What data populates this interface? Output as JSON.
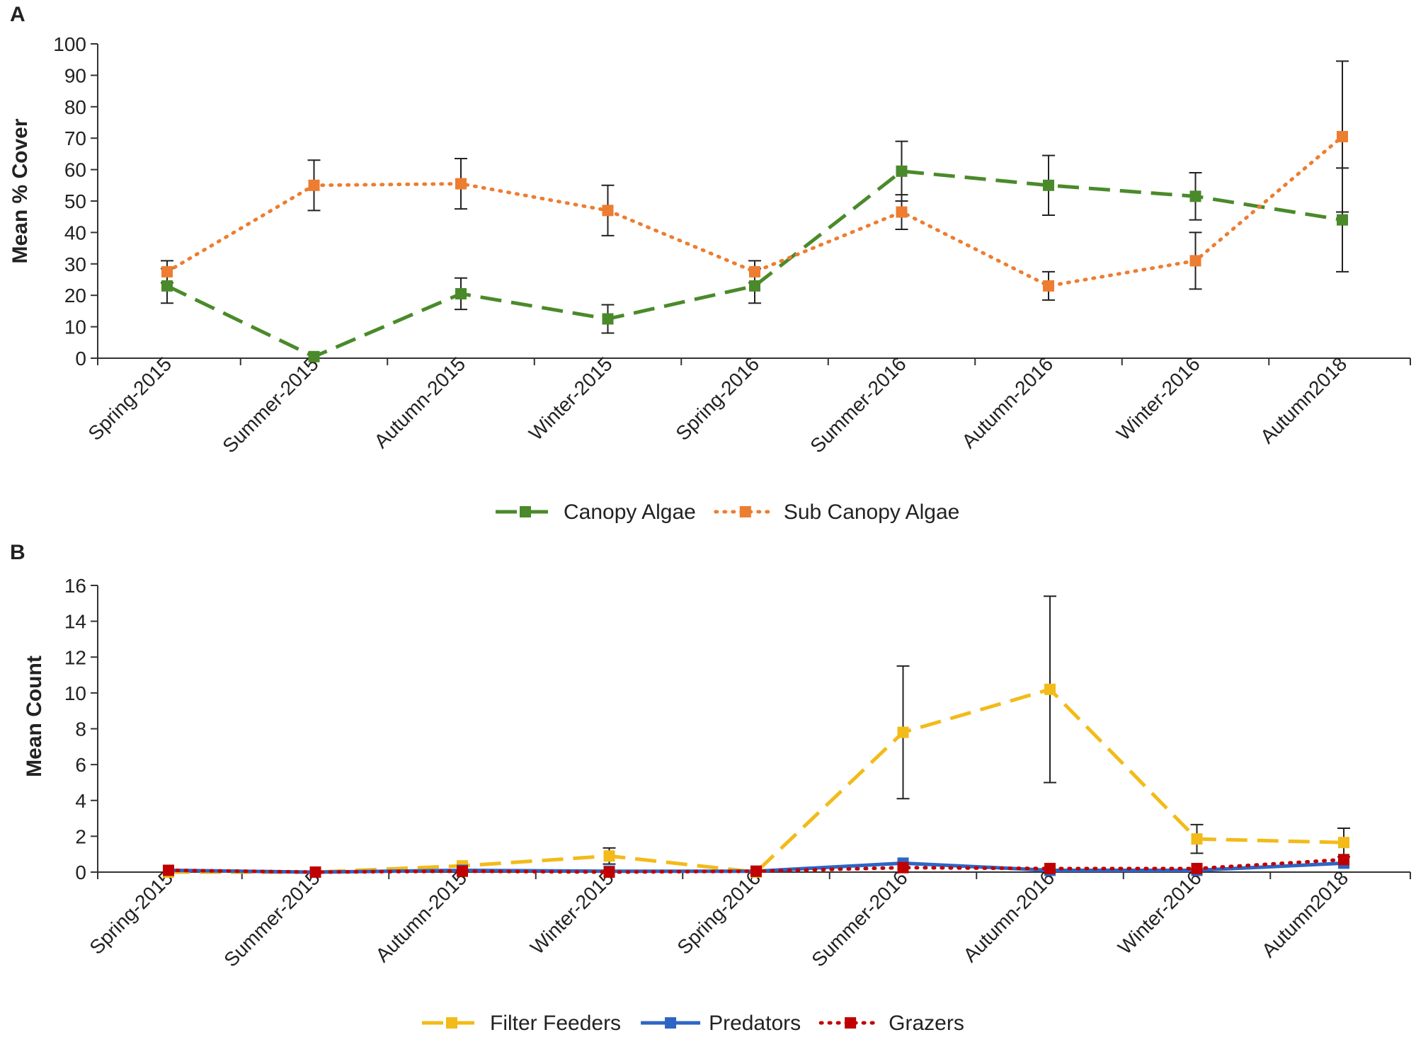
{
  "chart_data": [
    {
      "panel": "A",
      "type": "line",
      "title": "",
      "xlabel": "",
      "ylabel": "Mean % Cover",
      "ylim": [
        0,
        100
      ],
      "yticks": [
        0,
        10,
        20,
        30,
        40,
        50,
        60,
        70,
        80,
        90,
        100
      ],
      "grid": false,
      "legend": "bottom-center",
      "categories": [
        "Spring-2015",
        "Summer-2015",
        "Autumn-2015",
        "Winter-2015",
        "Spring-2016",
        "Summer-2016",
        "Autumn-2016",
        "Winter-2016",
        "Autumn2018"
      ],
      "series": [
        {
          "name": "Canopy Algae",
          "color": "#4a8a2a",
          "dash": "dashed",
          "values": [
            23,
            0.5,
            20.5,
            12.5,
            23,
            59.5,
            55,
            51.5,
            44
          ],
          "errors": [
            5.5,
            0,
            5,
            4.5,
            5.5,
            9.5,
            9.5,
            7.5,
            16.5
          ]
        },
        {
          "name": "Sub Canopy Algae",
          "color": "#ed7d31",
          "dash": "dotted",
          "values": [
            27.5,
            55,
            55.5,
            47,
            27.5,
            46.5,
            23,
            31,
            70.5
          ],
          "errors": [
            3.5,
            8,
            8,
            8,
            3.5,
            5.5,
            4.5,
            9,
            24
          ]
        }
      ]
    },
    {
      "panel": "B",
      "type": "line",
      "title": "",
      "xlabel": "",
      "ylabel": "Mean Count",
      "ylim": [
        0,
        16
      ],
      "yticks": [
        0,
        2,
        4,
        6,
        8,
        10,
        12,
        14,
        16
      ],
      "grid": false,
      "legend": "bottom-center",
      "categories": [
        "Spring-2015",
        "Summer-2015",
        "Autumn-2015",
        "Winter-2015",
        "Spring-2016",
        "Summer-2016",
        "Autumn-2016",
        "Winter-2016",
        "Autumn2018"
      ],
      "series": [
        {
          "name": "Filter Feeders",
          "color": "#f2bb19",
          "dash": "dashed",
          "values": [
            0,
            0,
            0.35,
            0.9,
            0,
            7.8,
            10.2,
            1.85,
            1.65
          ],
          "errors": [
            0,
            0,
            0,
            0.45,
            0,
            3.7,
            5.2,
            0.8,
            0.8
          ]
        },
        {
          "name": "Predators",
          "color": "#2e65c4",
          "dash": "solid",
          "values": [
            0.1,
            0,
            0.1,
            0.05,
            0.05,
            0.5,
            0.1,
            0.1,
            0.5
          ],
          "errors": [
            0,
            0,
            0,
            0,
            0,
            0,
            0,
            0,
            0
          ]
        },
        {
          "name": "Grazers",
          "color": "#c00000",
          "dash": "dotted",
          "values": [
            0.1,
            0,
            0.05,
            0,
            0.05,
            0.25,
            0.2,
            0.2,
            0.7
          ],
          "errors": [
            0,
            0,
            0,
            0,
            0,
            0,
            0,
            0,
            0
          ]
        }
      ]
    }
  ]
}
